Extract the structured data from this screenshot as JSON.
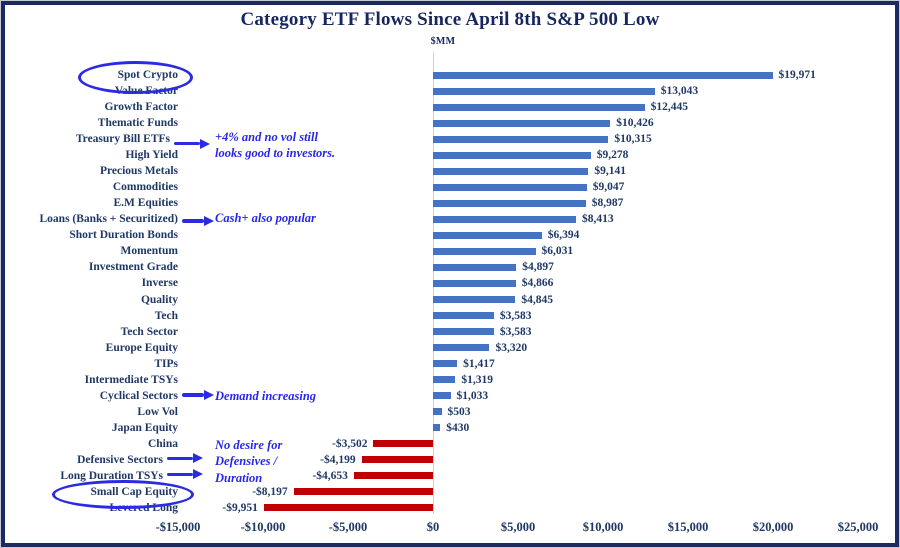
{
  "chart_data": {
    "type": "bar",
    "orientation": "horizontal",
    "title": "Category ETF Flows Since April 8th S&P 500 Low",
    "units": "$MM",
    "xlim": [
      -15000,
      25000
    ],
    "grid": false,
    "legend": "none",
    "categories": [
      "Spot Crypto",
      "Value Factor",
      "Growth Factor",
      "Thematic Funds",
      "Treasury Bill ETFs",
      "High Yield",
      "Precious Metals",
      "Commodities",
      "E.M Equities",
      "Loans (Banks + Securitized)",
      "Short Duration Bonds",
      "Momentum",
      "Investment Grade",
      "Inverse",
      "Quality",
      "Tech",
      "Tech Sector",
      "Europe Equity",
      "TIPs",
      "Intermediate TSYs",
      "Cyclical Sectors",
      "Low Vol",
      "Japan Equity",
      "China",
      "Defensive Sectors",
      "Long Duration TSYs",
      "Small Cap Equity",
      "Levered Long"
    ],
    "values": [
      19971,
      13043,
      12445,
      10426,
      10315,
      9278,
      9141,
      9047,
      8987,
      8413,
      6394,
      6031,
      4897,
      4866,
      4845,
      3583,
      3583,
      3320,
      1417,
      1319,
      1033,
      503,
      430,
      -3502,
      -4199,
      -4653,
      -8197,
      -9951
    ],
    "value_labels": [
      "$19,971",
      "$13,043",
      "$12,445",
      "$10,426",
      "$10,315",
      "$9,278",
      "$9,141",
      "$9,047",
      "$8,987",
      "$8,413",
      "$6,394",
      "$6,031",
      "$4,897",
      "$4,866",
      "$4,845",
      "$3,583",
      "$3,583",
      "$3,320",
      "$1,417",
      "$1,319",
      "$1,033",
      "$503",
      "$430",
      "-$3,502",
      "-$4,199",
      "-$4,653",
      "-$8,197",
      "-$9,951"
    ],
    "tick_values": [
      -15000,
      -10000,
      -5000,
      0,
      5000,
      10000,
      15000,
      20000,
      25000
    ],
    "tick_labels": [
      "-$15,000",
      "-$10,000",
      "-$5,000",
      "$0",
      "$5,000",
      "$10,000",
      "$15,000",
      "$20,000",
      "$25,000"
    ]
  },
  "annotations": [
    {
      "id": "tsy",
      "lines": [
        "+4% and no vol still",
        "looks good to investors."
      ],
      "arrow_targets": [
        "Treasury Bill ETFs"
      ]
    },
    {
      "id": "loans",
      "lines": [
        "Cash+ also popular"
      ],
      "arrow_targets": [
        "Loans (Banks + Securitized)"
      ]
    },
    {
      "id": "cyc",
      "lines": [
        "Demand increasing"
      ],
      "arrow_targets": [
        "Cyclical Sectors"
      ]
    },
    {
      "id": "def",
      "lines": [
        "No desire for",
        "Defensives /",
        "Duration"
      ],
      "arrow_targets": [
        "Defensive Sectors",
        "Long Duration TSYs"
      ]
    }
  ],
  "highlighted_categories": [
    "Spot Crypto",
    "Small Cap Equity"
  ],
  "colors": {
    "positive_bar": "#4472C4",
    "negative_bar": "#C00000",
    "text_navy": "#1F3864",
    "annotation_blue": "#2B2BE4",
    "axis_line": "#CFD0D8",
    "frame_border": "#1B2A63"
  }
}
